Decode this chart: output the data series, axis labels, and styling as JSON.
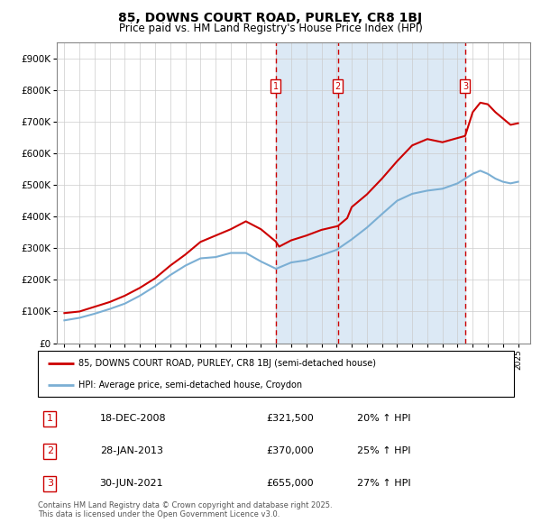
{
  "title1": "85, DOWNS COURT ROAD, PURLEY, CR8 1BJ",
  "title2": "Price paid vs. HM Land Registry's House Price Index (HPI)",
  "legend_line1": "85, DOWNS COURT ROAD, PURLEY, CR8 1BJ (semi-detached house)",
  "legend_line2": "HPI: Average price, semi-detached house, Croydon",
  "footer": "Contains HM Land Registry data © Crown copyright and database right 2025.\nThis data is licensed under the Open Government Licence v3.0.",
  "transactions": [
    {
      "num": 1,
      "date": "18-DEC-2008",
      "price": "£321,500",
      "hpi": "20% ↑ HPI",
      "year": 2008.97
    },
    {
      "num": 2,
      "date": "28-JAN-2013",
      "price": "£370,000",
      "hpi": "25% ↑ HPI",
      "year": 2013.08
    },
    {
      "num": 3,
      "date": "30-JUN-2021",
      "price": "£655,000",
      "hpi": "27% ↑ HPI",
      "year": 2021.5
    }
  ],
  "red_color": "#cc0000",
  "blue_color": "#7bafd4",
  "shade_color": "#dce9f5",
  "ylim_max": 950000,
  "xlim_start": 1994.5,
  "xlim_end": 2025.8,
  "red_x": [
    1995,
    1996,
    1997,
    1998,
    1999,
    2000,
    2001,
    2002,
    2003,
    2004,
    2005,
    2006,
    2007,
    2008.0,
    2008.97,
    2009.2,
    2010,
    2011,
    2012,
    2013.08,
    2013.7,
    2014,
    2015,
    2016,
    2017,
    2018,
    2019,
    2020,
    2021.5,
    2022.0,
    2022.5,
    2023.0,
    2023.5,
    2024.0,
    2024.5,
    2025.0
  ],
  "red_y": [
    95000,
    100000,
    115000,
    130000,
    150000,
    175000,
    205000,
    245000,
    280000,
    320000,
    340000,
    360000,
    385000,
    360000,
    321500,
    305000,
    325000,
    340000,
    358000,
    370000,
    395000,
    430000,
    470000,
    520000,
    575000,
    625000,
    645000,
    635000,
    655000,
    730000,
    760000,
    755000,
    730000,
    710000,
    690000,
    695000
  ],
  "blue_x": [
    1995,
    1996,
    1997,
    1998,
    1999,
    2000,
    2001,
    2002,
    2003,
    2004,
    2005,
    2006,
    2007,
    2008,
    2009,
    2010,
    2011,
    2012,
    2013,
    2014,
    2015,
    2016,
    2017,
    2018,
    2019,
    2020,
    2021,
    2022,
    2022.5,
    2023,
    2023.5,
    2024,
    2024.5,
    2025
  ],
  "blue_y": [
    72000,
    80000,
    93000,
    108000,
    125000,
    150000,
    180000,
    215000,
    245000,
    268000,
    272000,
    285000,
    285000,
    258000,
    235000,
    255000,
    262000,
    278000,
    295000,
    328000,
    365000,
    408000,
    450000,
    472000,
    482000,
    488000,
    505000,
    535000,
    545000,
    535000,
    520000,
    510000,
    505000,
    510000
  ]
}
